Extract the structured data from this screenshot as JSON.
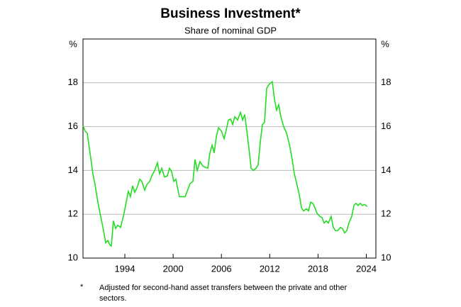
{
  "chart_data": {
    "type": "line",
    "title": "Business Investment*",
    "subtitle": "Share of nominal GDP",
    "y_unit": "%",
    "footnote_marker": "*",
    "footnote": "Adjusted for second-hand asset transfers between the private and other sectors.",
    "xlim": [
      1988.8,
      2025.19
    ],
    "xticks": [
      1994,
      2000,
      2006,
      2012,
      2018,
      2024
    ],
    "ylim": [
      10,
      20
    ],
    "yticks": [
      10,
      12,
      14,
      16,
      18
    ],
    "grid": true,
    "series": [
      {
        "name": "Business investment",
        "color": "#22dd22",
        "x": [
          1988.8,
          1989.06,
          1989.33,
          1989.68,
          1990.03,
          1990.3,
          1990.65,
          1991.0,
          1991.36,
          1991.62,
          1991.88,
          1992.15,
          1992.32,
          1992.58,
          1992.85,
          1993.12,
          1993.47,
          1993.82,
          1994.09,
          1994.44,
          1994.7,
          1994.97,
          1995.23,
          1995.5,
          1995.85,
          1996.11,
          1996.47,
          1996.73,
          1997.08,
          1997.35,
          1997.7,
          1998.05,
          1998.32,
          1998.58,
          1998.93,
          1999.28,
          1999.55,
          1999.81,
          2000.08,
          2000.34,
          2000.61,
          2000.78,
          2001.13,
          2001.49,
          2001.75,
          2002.1,
          2002.46,
          2002.72,
          2002.99,
          2003.34,
          2003.69,
          2003.96,
          2004.31,
          2004.57,
          2004.84,
          2005.1,
          2005.37,
          2005.63,
          2005.99,
          2006.34,
          2006.6,
          2006.87,
          2007.13,
          2007.4,
          2007.66,
          2008.01,
          2008.37,
          2008.63,
          2008.89,
          2009.16,
          2009.42,
          2009.69,
          2009.95,
          2010.3,
          2010.56,
          2010.83,
          2011.09,
          2011.36,
          2011.62,
          2011.97,
          2012.32,
          2012.59,
          2012.85,
          2013.12,
          2013.38,
          2013.73,
          2014.09,
          2014.44,
          2014.79,
          2015.06,
          2015.32,
          2015.67,
          2015.94,
          2016.2,
          2016.55,
          2016.82,
          2017.08,
          2017.35,
          2017.61,
          2017.87,
          2018.23,
          2018.49,
          2018.76,
          2019.02,
          2019.28,
          2019.63,
          2019.9,
          2020.16,
          2020.43,
          2020.78,
          2021.04,
          2021.31,
          2021.57,
          2021.84,
          2022.19,
          2022.45,
          2022.71,
          2022.98,
          2023.24,
          2023.5,
          2023.77,
          2024.12
        ],
        "values": [
          16.05,
          15.8,
          15.7,
          14.8,
          13.85,
          13.35,
          12.55,
          11.9,
          11.25,
          10.7,
          10.8,
          10.6,
          10.55,
          11.7,
          11.35,
          11.5,
          11.4,
          11.9,
          12.4,
          13.05,
          12.8,
          13.3,
          13.0,
          13.2,
          13.6,
          13.5,
          13.1,
          13.35,
          13.5,
          13.75,
          14.0,
          14.35,
          13.85,
          14.1,
          13.7,
          13.75,
          14.1,
          13.95,
          13.5,
          13.6,
          13.1,
          12.8,
          12.8,
          12.8,
          13.05,
          13.4,
          13.5,
          14.5,
          14.0,
          14.4,
          14.2,
          14.15,
          14.1,
          14.8,
          15.15,
          14.8,
          15.55,
          15.95,
          15.8,
          15.45,
          15.85,
          16.3,
          16.35,
          16.1,
          16.45,
          16.3,
          16.65,
          16.3,
          16.55,
          15.8,
          15.0,
          14.1,
          14.0,
          14.1,
          14.25,
          15.3,
          16.1,
          16.2,
          17.75,
          17.95,
          18.05,
          17.25,
          16.75,
          17.0,
          16.45,
          16.0,
          15.7,
          15.2,
          14.5,
          13.85,
          13.45,
          12.9,
          12.3,
          12.15,
          12.25,
          12.15,
          12.55,
          12.5,
          12.3,
          12.05,
          11.9,
          11.85,
          11.6,
          11.7,
          11.6,
          11.9,
          11.4,
          11.25,
          11.25,
          11.4,
          11.35,
          11.15,
          11.25,
          11.6,
          11.9,
          12.4,
          12.5,
          12.4,
          12.5,
          12.4,
          12.45,
          12.35
        ]
      }
    ]
  }
}
